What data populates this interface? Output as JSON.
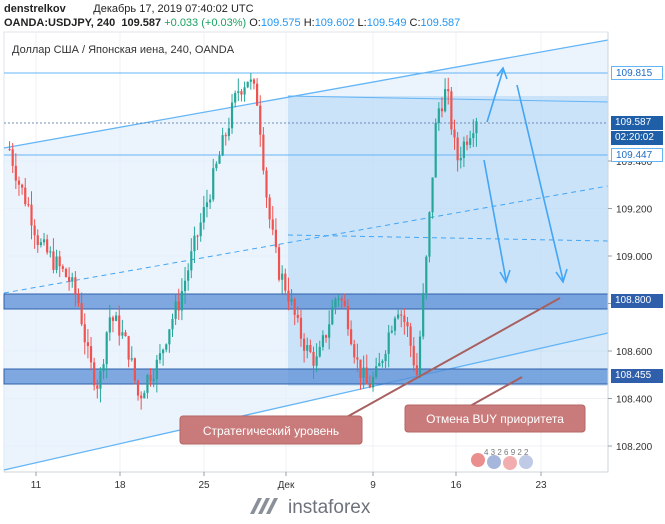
{
  "header": {
    "user": "denstrelkov",
    "datetime": "Декабрь 17, 2019 07:40:02 UTC",
    "symbol": "OANDA:USDJPY, 240",
    "last": "109.587",
    "change": "+0.033 (+0.03%)",
    "o_label": "O:",
    "o": "109.575",
    "h_label": "H:",
    "h": "109.602",
    "l_label": "L:",
    "l": "109.549",
    "c_label": "C:",
    "c": "109.587"
  },
  "subtitle": "Доллар США / Японская иена, 240, OANDA",
  "price_labels": {
    "p1": "109.815",
    "p2": "109.587",
    "countdown": "02:20:02",
    "p3": "109.447",
    "p4": "108.800",
    "p5": "108.455"
  },
  "annotations": {
    "strategic": "Стратегический уровень",
    "cancel_buy": "Отмена BUY приоритета"
  },
  "logo_text": "instaforex",
  "watermark_digits": "4 3 2 6 9 2 2",
  "colors": {
    "bull": "#26a69a",
    "bear": "#ef5350",
    "channel": "#64b5f6",
    "zone": "#5b8fd6",
    "annotation": "#c97a7a",
    "arrow": "#42a5f5"
  },
  "chart_data": {
    "type": "candlestick",
    "symbol": "USDJPY",
    "timeframe": "240",
    "ylim": [
      108.08,
      109.97
    ],
    "y_ticks": [
      108.2,
      108.4,
      108.6,
      108.8,
      109.0,
      109.2,
      109.4
    ],
    "x_ticks": [
      "11",
      "18",
      "25",
      "Дек",
      "9",
      "16",
      "23"
    ],
    "levels": {
      "resistance": 109.815,
      "current": 109.587,
      "level_2": 109.447,
      "support_zone": 108.8,
      "lower_zone": 108.455
    },
    "close_path": [
      109.45,
      109.3,
      109.2,
      109.05,
      109.0,
      108.95,
      108.9,
      108.8,
      108.55,
      108.45,
      108.75,
      108.7,
      108.6,
      108.4,
      108.5,
      108.55,
      108.7,
      108.8,
      108.95,
      109.1,
      109.25,
      109.4,
      109.55,
      109.7,
      109.75,
      109.65,
      109.2,
      108.95,
      108.85,
      108.7,
      108.6,
      108.55,
      108.7,
      108.85,
      108.75,
      108.55,
      108.45,
      108.5,
      108.65,
      108.8,
      108.7,
      108.5,
      109.0,
      109.6,
      109.7,
      109.4,
      109.5,
      109.59
    ]
  }
}
